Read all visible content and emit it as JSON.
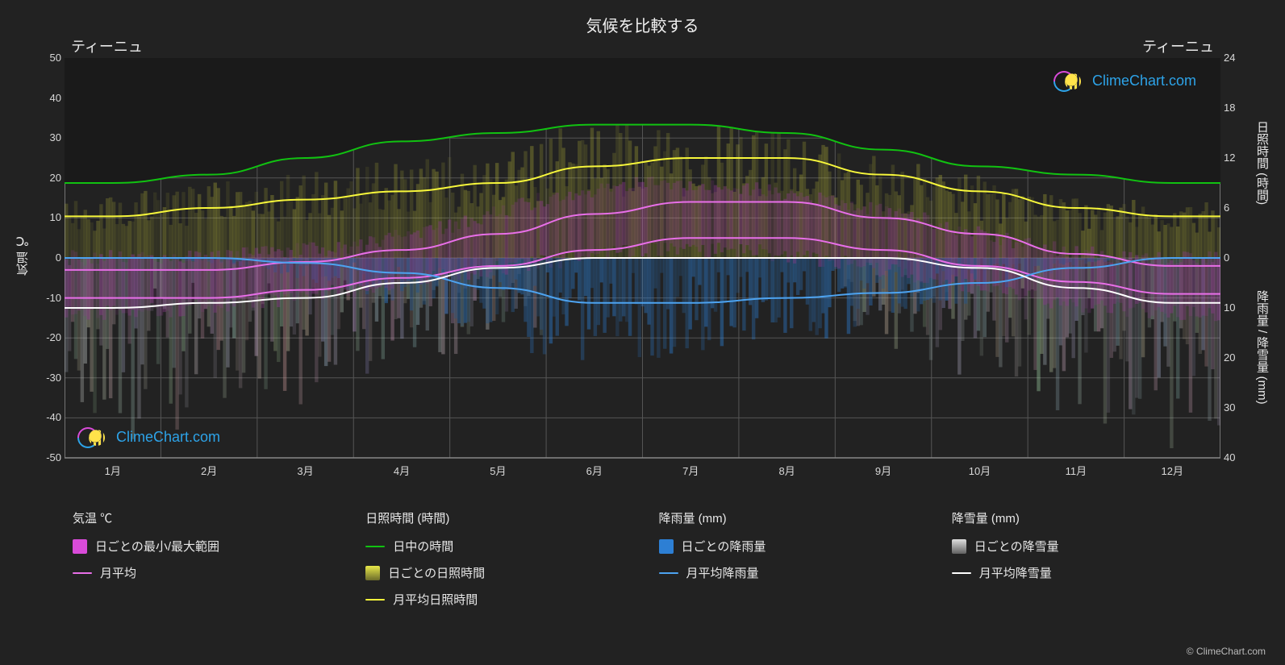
{
  "chart": {
    "type": "line+bar-overlay",
    "title": "気候を比較する",
    "location_left": "ティーニュ",
    "location_right": "ティーニュ",
    "background_color": "#222222",
    "plot_bg": "#222222",
    "grid_color": "#555555",
    "axis_color": "#cccccc",
    "tick_font_size": 13,
    "axis_font_size": 15,
    "title_font_size": 20,
    "x": {
      "months": [
        "1月",
        "2月",
        "3月",
        "4月",
        "5月",
        "6月",
        "7月",
        "8月",
        "9月",
        "10月",
        "11月",
        "12月"
      ]
    },
    "y_left": {
      "label": "気温 ℃",
      "min": -50,
      "max": 50,
      "step": 10,
      "ticks": [
        50,
        40,
        30,
        20,
        10,
        0,
        -10,
        -20,
        -30,
        -40,
        -50
      ]
    },
    "y_right_top": {
      "label": "日照時間 (時間)",
      "ticks": [
        24,
        18,
        12,
        6,
        0
      ],
      "min": 0,
      "max": 24
    },
    "y_right_bot": {
      "label": "降雨量 / 降雪量 (mm)",
      "ticks": [
        10,
        20,
        30,
        40
      ],
      "min": 0,
      "max": 40
    },
    "colors": {
      "temp_range_fill": "#d94bd9",
      "temp_avg_line": "#e86fe8",
      "daylight_line": "#11c211",
      "sunshine_fill_top": "#e8e84a",
      "sunshine_fill_bot": "#6b6b2a",
      "sunshine_avg_line": "#f7f73b",
      "rain_fill": "#2d7fd4",
      "rain_avg_line": "#4da3f0",
      "snow_fill": "#dedede",
      "snow_fill_dark": "#707070",
      "snow_avg_line": "#ffffff",
      "watermark_text": "#2da3e8"
    },
    "series": {
      "temp_max_monthly": [
        -3,
        -3,
        -1,
        2,
        6,
        11,
        14,
        14,
        10,
        6,
        1,
        -2
      ],
      "temp_min_monthly": [
        -10,
        -10,
        -8,
        -5,
        -2,
        2,
        5,
        5,
        2,
        -2,
        -6,
        -9
      ],
      "daylight_hours": [
        9,
        10,
        12,
        14,
        15,
        16,
        16,
        15,
        13,
        11,
        10,
        9
      ],
      "sunshine_hours": [
        5,
        6,
        7,
        8,
        9,
        11,
        12,
        12,
        10,
        8,
        6,
        5
      ],
      "rain_mm": [
        0,
        0,
        1,
        3,
        6,
        9,
        9,
        8,
        7,
        5,
        2,
        0
      ],
      "snow_mm": [
        10,
        9,
        8,
        5,
        2,
        0,
        0,
        0,
        0,
        2,
        6,
        9
      ],
      "temp_daily_hi": [
        0,
        0,
        1,
        3,
        8,
        15,
        19,
        18,
        14,
        9,
        3,
        0
      ],
      "temp_daily_lo": [
        -14,
        -13,
        -11,
        -8,
        -4,
        -1,
        2,
        2,
        -1,
        -5,
        -10,
        -13
      ]
    },
    "watermark_text": "ClimeChart.com",
    "footer_credit": "© ClimeChart.com"
  },
  "legend": {
    "cols": [
      {
        "title": "気温 ℃",
        "items": [
          {
            "type": "box",
            "color": "#d94bd9",
            "label": "日ごとの最小/最大範囲"
          },
          {
            "type": "line",
            "color": "#e86fe8",
            "label": "月平均"
          }
        ]
      },
      {
        "title": "日照時間 (時間)",
        "items": [
          {
            "type": "line",
            "color": "#11c211",
            "label": "日中の時間"
          },
          {
            "type": "grad",
            "color": "#e8e84a",
            "color2": "#6b6b2a",
            "label": "日ごとの日照時間"
          },
          {
            "type": "line",
            "color": "#f7f73b",
            "label": "月平均日照時間"
          }
        ]
      },
      {
        "title": "降雨量 (mm)",
        "items": [
          {
            "type": "box",
            "color": "#2d7fd4",
            "label": "日ごとの降雨量"
          },
          {
            "type": "line",
            "color": "#4da3f0",
            "label": "月平均降雨量"
          }
        ]
      },
      {
        "title": "降雪量 (mm)",
        "items": [
          {
            "type": "grad",
            "color": "#dedede",
            "color2": "#606060",
            "label": "日ごとの降雪量"
          },
          {
            "type": "line",
            "color": "#ffffff",
            "label": "月平均降雪量"
          }
        ]
      }
    ]
  }
}
